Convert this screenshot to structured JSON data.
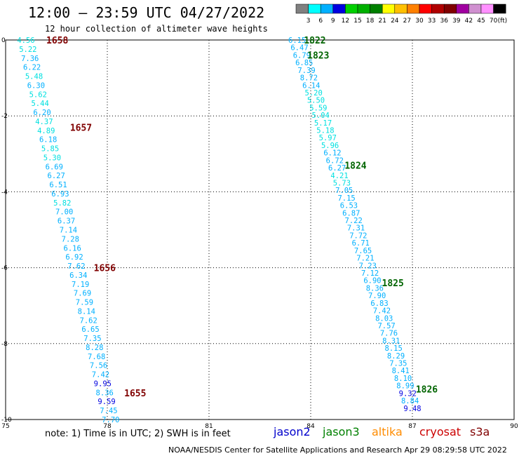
{
  "header": {
    "title": "12:00 — 23:59 UTC 04/27/2022",
    "subtitle": "12 hour collection of altimeter wave heights"
  },
  "legend": {
    "ticks": [
      "3",
      "6",
      "9",
      "12",
      "15",
      "18",
      "21",
      "24",
      "27",
      "30",
      "33",
      "36",
      "39",
      "42",
      "45",
      "70"
    ],
    "unit": "(ft)",
    "colors": [
      "#808080",
      "#00ffff",
      "#00b0ff",
      "#0000e0",
      "#00d000",
      "#00b000",
      "#008000",
      "#ffff00",
      "#ffc000",
      "#ff8000",
      "#ff0000",
      "#b00000",
      "#800000",
      "#a000a0",
      "#d090d0",
      "#ff90ff",
      "#000000"
    ]
  },
  "map": {
    "x_ticks": [
      "75",
      "78",
      "81",
      "84",
      "87",
      "90"
    ],
    "x_values": [
      75,
      78,
      81,
      84,
      87,
      90
    ],
    "y_ticks": [
      "0",
      "-2",
      "-4",
      "-6",
      "-8",
      "-10"
    ],
    "y_values": [
      0,
      -2,
      -4,
      -6,
      -8,
      -10
    ],
    "x_range": [
      75,
      90
    ],
    "y_range": [
      -10,
      0
    ]
  },
  "tracks": [
    {
      "satellite": "cryosat",
      "start": [
        75.6,
        0.0
      ],
      "end": [
        78.1,
        -10.0
      ],
      "values": [
        "4.56",
        "5.22",
        "7.36",
        "6.22",
        "5.48",
        "6.30",
        "5.62",
        "5.44",
        "6.20",
        "4.37",
        "4.89",
        "6.18",
        "5.85",
        "5.30",
        "6.69",
        "6.27",
        "6.51",
        "6.93",
        "5.82",
        "7.00",
        "6.37",
        "7.14",
        "7.28",
        "6.16",
        "6.92",
        "7.62",
        "6.34",
        "7.19",
        "7.69",
        "7.59",
        "8.14",
        "7.62",
        "6.65",
        "7.35",
        "8.28",
        "7.68",
        "7.56",
        "7.42",
        "9.95",
        "8.36",
        "9.59",
        "7.45",
        "7.70"
      ],
      "time_labels": [
        {
          "text": "1658",
          "lon": 76.2,
          "lat": 0.0
        },
        {
          "text": "1657",
          "lon": 76.9,
          "lat": -2.3
        },
        {
          "text": "1656",
          "lon": 77.6,
          "lat": -6.0
        },
        {
          "text": "1655",
          "lon": 78.5,
          "lat": -9.3
        }
      ]
    },
    {
      "satellite": "jason3",
      "start": [
        83.6,
        0.0
      ],
      "end": [
        87.0,
        -9.7
      ],
      "values": [
        "6.15",
        "6.47",
        "6.79",
        "6.85",
        "7.39",
        "8.72",
        "6.14",
        "5.20",
        "5.50",
        "5.59",
        "5.04",
        "5.17",
        "5.18",
        "5.97",
        "5.96",
        "6.12",
        "6.72",
        "6.27",
        "4.21",
        "5.73",
        "7.05",
        "7.15",
        "6.53",
        "6.87",
        "7.22",
        "7.31",
        "7.72",
        "6.71",
        "7.65",
        "7.21",
        "7.23",
        "7.12",
        "6.90",
        "8.36",
        "7.90",
        "6.83",
        "7.42",
        "8.03",
        "7.57",
        "7.76",
        "8.31",
        "8.15",
        "8.29",
        "7.35",
        "8.41",
        "8.10",
        "8.99",
        "9.32",
        "8.84",
        "9.48"
      ],
      "time_labels": [
        {
          "text": "1822",
          "lon": 83.8,
          "lat": 0.0
        },
        {
          "text": "1823",
          "lon": 83.9,
          "lat": -0.4
        },
        {
          "text": "1824",
          "lon": 85.0,
          "lat": -3.3
        },
        {
          "text": "1825",
          "lon": 86.1,
          "lat": -6.4
        },
        {
          "text": "1826",
          "lon": 87.1,
          "lat": -9.2
        }
      ]
    }
  ],
  "note": "note:  1) Time is in UTC;  2) SWH is in feet",
  "satellites": [
    {
      "name": "jason2",
      "color": "#0000cc"
    },
    {
      "name": "jason3",
      "color": "#008000"
    },
    {
      "name": "altika",
      "color": "#ff8c00"
    },
    {
      "name": "cryosat",
      "color": "#cc0000"
    },
    {
      "name": "s3a",
      "color": "#800000"
    }
  ],
  "footer": "NOAA/NESDIS Center for Satellite Applications and Research    Apr 29 08:29:58 UTC 2022",
  "colors": {
    "time_label_cryosat": "#800000",
    "time_label_jason3": "#006400"
  }
}
